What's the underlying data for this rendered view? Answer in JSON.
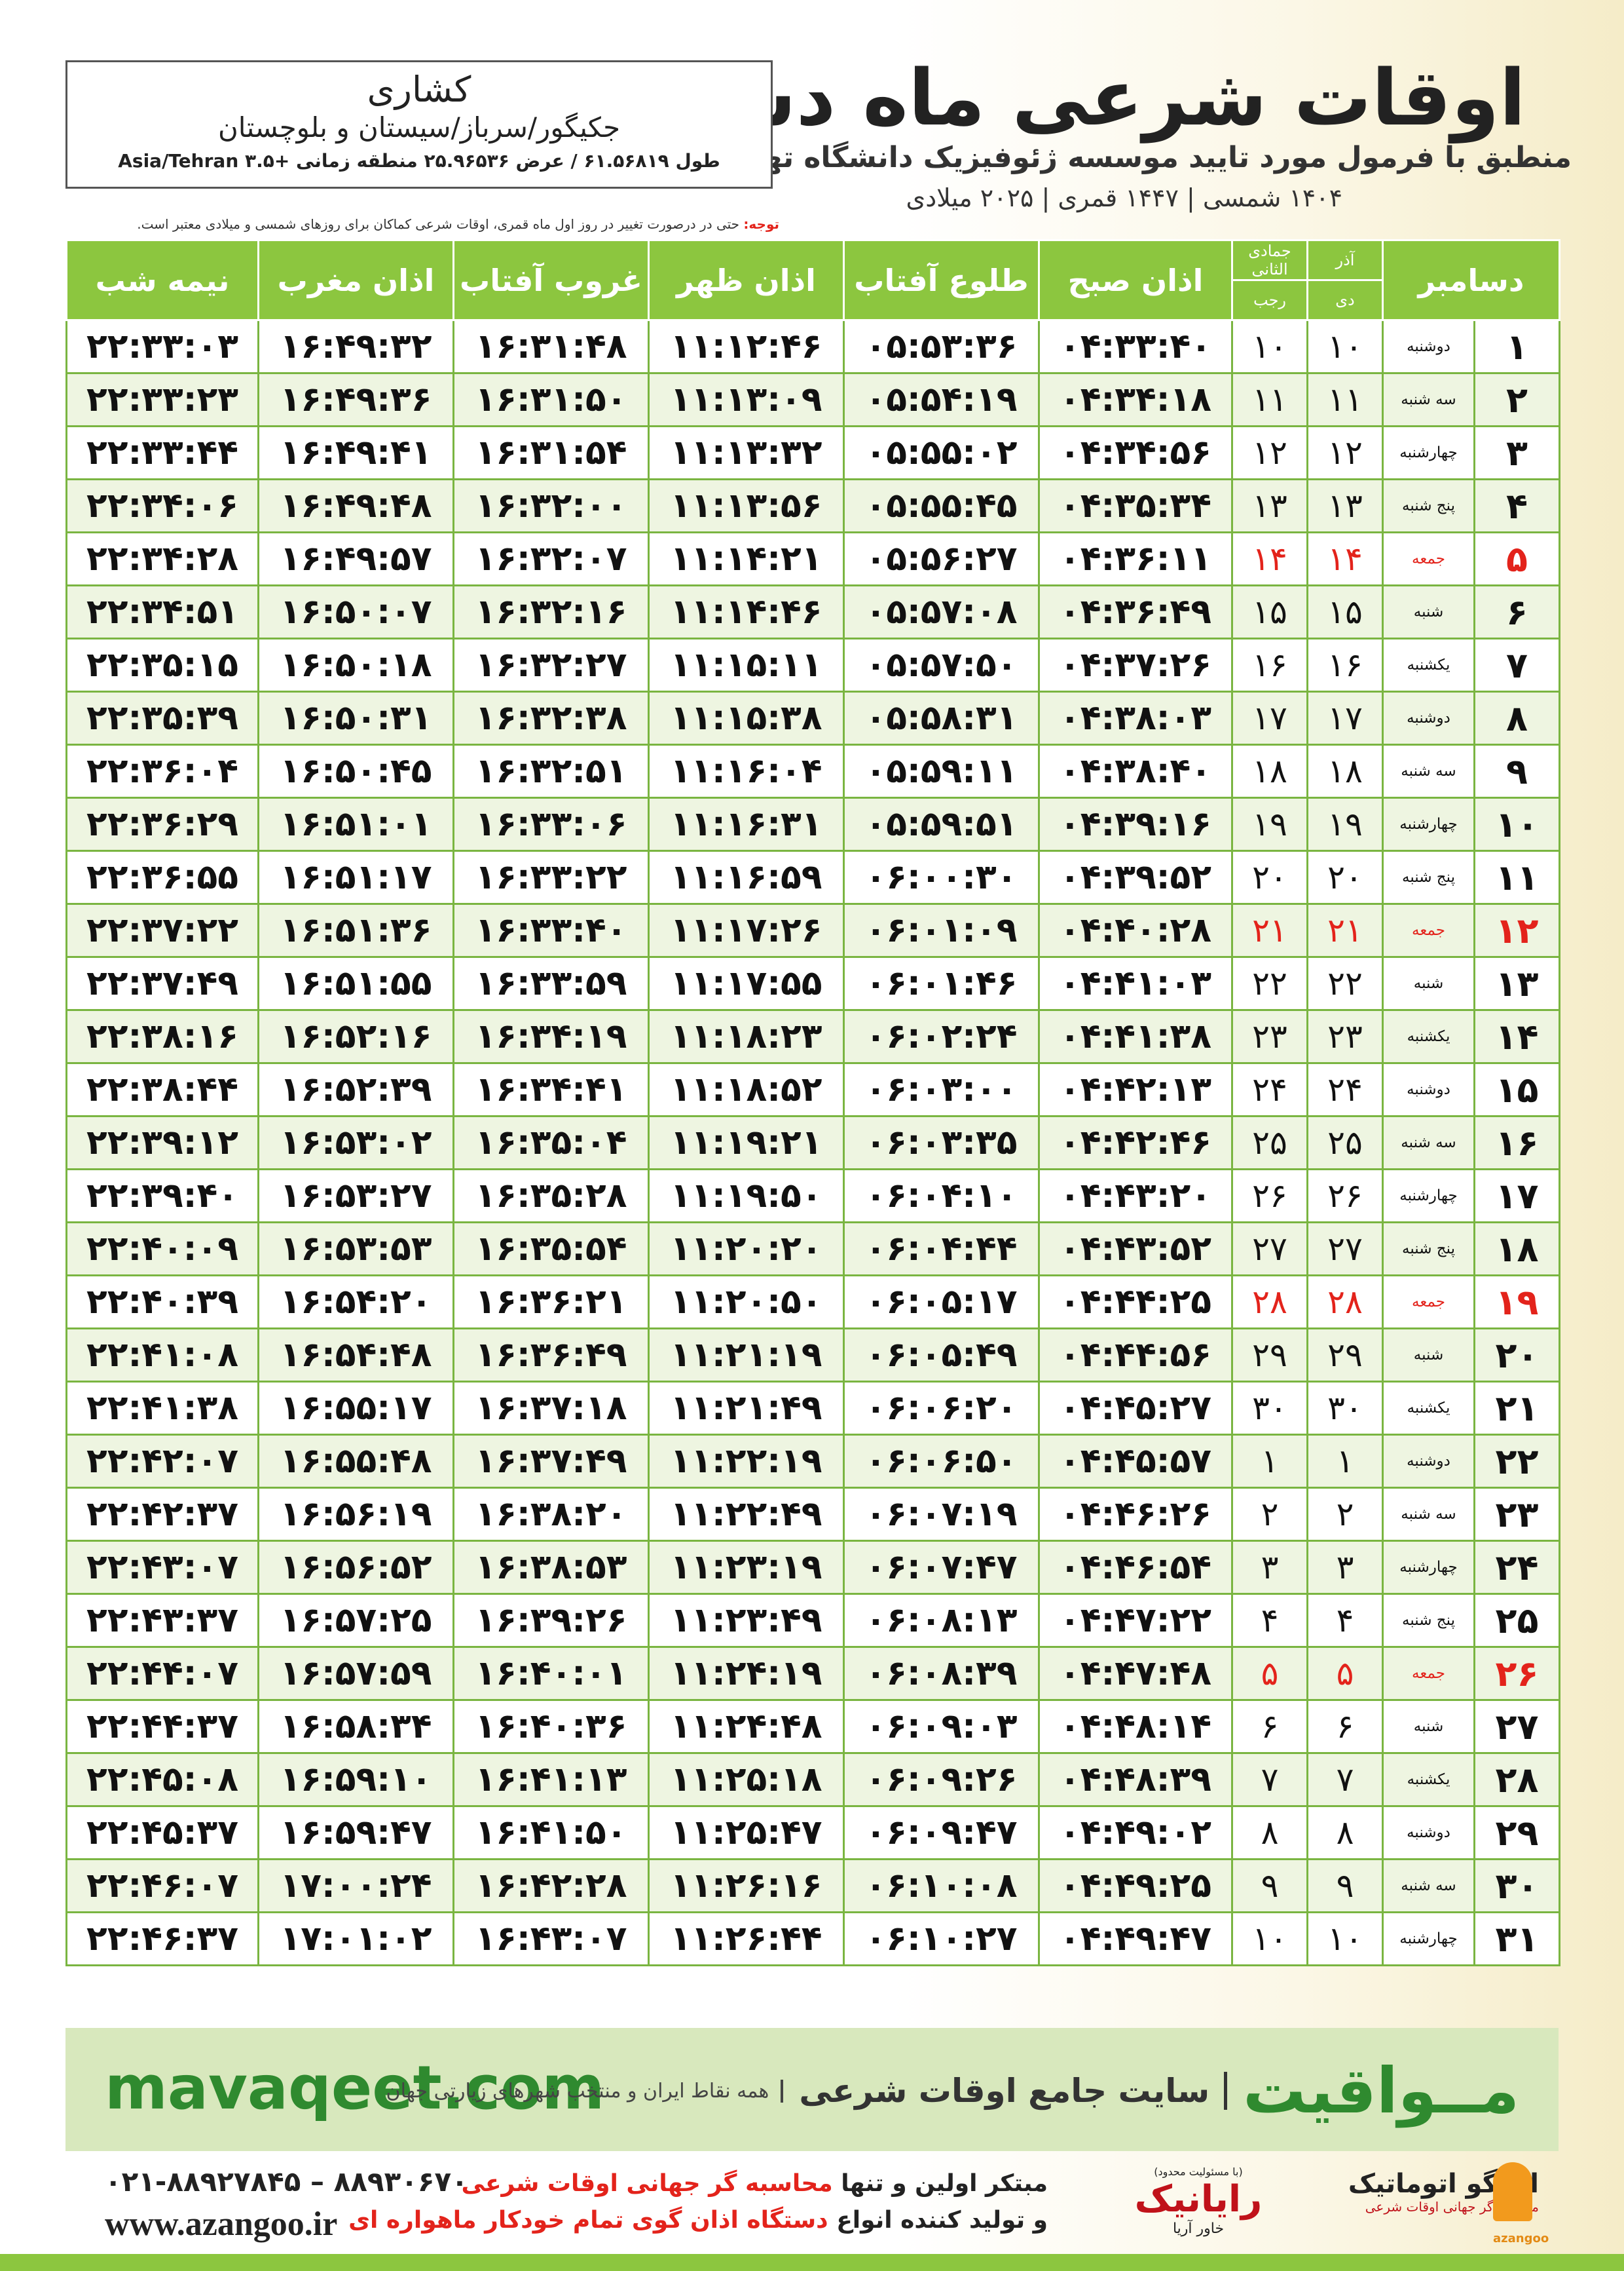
{
  "header": {
    "title": "اوقات شرعی ماه دسامبر",
    "subtitle": "منطبق با فرمول مورد تایید موسسه ژئوفیزیک دانشگاه تهران",
    "date_line": "۱۴۰۴ شمسی | ۱۴۴۷ قمری | ۲۰۲۵ میلادی"
  },
  "location": {
    "name": "کشاری",
    "region": "جکیگور/سرباز/سیستان و بلوچستان",
    "coords": "طول ۶۱.۵۶۸۱۹ / عرض ۲۵.۹۶۵۳۶ منطقه زمانی +۳.۵ Asia/Tehran"
  },
  "note": {
    "label": "توجه:",
    "text": "حتی در درصورت تغییر در روز اول ماه قمری، اوقات شرعی کماکان برای روزهای شمسی و میلادی معتبر است."
  },
  "table": {
    "headers": {
      "month": "دسامبر",
      "shamsi_top": "آذر",
      "shamsi_bottom": "دی",
      "qamari_top": "جمادی الثانی",
      "qamari_bottom": "رجب",
      "times": [
        "اذان صبح",
        "طلوع آفتاب",
        "اذان ظهر",
        "غروب آفتاب",
        "اذان مغرب",
        "نیمه شب"
      ]
    },
    "rows": [
      {
        "cells": [
          "۱",
          "دوشنبه",
          "۱۰",
          "۱۰",
          "۰۴:۳۳:۴۰",
          "۰۵:۵۳:۳۶",
          "۱۱:۱۲:۴۶",
          "۱۶:۳۱:۴۸",
          "۱۶:۴۹:۳۲",
          "۲۲:۳۳:۰۳"
        ]
      },
      {
        "cells": [
          "۲",
          "سه شنبه",
          "۱۱",
          "۱۱",
          "۰۴:۳۴:۱۸",
          "۰۵:۵۴:۱۹",
          "۱۱:۱۳:۰۹",
          "۱۶:۳۱:۵۰",
          "۱۶:۴۹:۳۶",
          "۲۲:۳۳:۲۳"
        ]
      },
      {
        "cells": [
          "۳",
          "چهارشنبه",
          "۱۲",
          "۱۲",
          "۰۴:۳۴:۵۶",
          "۰۵:۵۵:۰۲",
          "۱۱:۱۳:۳۲",
          "۱۶:۳۱:۵۴",
          "۱۶:۴۹:۴۱",
          "۲۲:۳۳:۴۴"
        ]
      },
      {
        "cells": [
          "۴",
          "پنج شنبه",
          "۱۳",
          "۱۳",
          "۰۴:۳۵:۳۴",
          "۰۵:۵۵:۴۵",
          "۱۱:۱۳:۵۶",
          "۱۶:۳۲:۰۰",
          "۱۶:۴۹:۴۸",
          "۲۲:۳۴:۰۶"
        ]
      },
      {
        "cells": [
          "۵",
          "جمعه",
          "۱۴",
          "۱۴",
          "۰۴:۳۶:۱۱",
          "۰۵:۵۶:۲۷",
          "۱۱:۱۴:۲۱",
          "۱۶:۳۲:۰۷",
          "۱۶:۴۹:۵۷",
          "۲۲:۳۴:۲۸"
        ],
        "color": "#e3231b"
      },
      {
        "cells": [
          "۶",
          "شنبه",
          "۱۵",
          "۱۵",
          "۰۴:۳۶:۴۹",
          "۰۵:۵۷:۰۸",
          "۱۱:۱۴:۴۶",
          "۱۶:۳۲:۱۶",
          "۱۶:۵۰:۰۷",
          "۲۲:۳۴:۵۱"
        ]
      },
      {
        "cells": [
          "۷",
          "یکشنبه",
          "۱۶",
          "۱۶",
          "۰۴:۳۷:۲۶",
          "۰۵:۵۷:۵۰",
          "۱۱:۱۵:۱۱",
          "۱۶:۳۲:۲۷",
          "۱۶:۵۰:۱۸",
          "۲۲:۳۵:۱۵"
        ]
      },
      {
        "cells": [
          "۸",
          "دوشنبه",
          "۱۷",
          "۱۷",
          "۰۴:۳۸:۰۳",
          "۰۵:۵۸:۳۱",
          "۱۱:۱۵:۳۸",
          "۱۶:۳۲:۳۸",
          "۱۶:۵۰:۳۱",
          "۲۲:۳۵:۳۹"
        ]
      },
      {
        "cells": [
          "۹",
          "سه شنبه",
          "۱۸",
          "۱۸",
          "۰۴:۳۸:۴۰",
          "۰۵:۵۹:۱۱",
          "۱۱:۱۶:۰۴",
          "۱۶:۳۲:۵۱",
          "۱۶:۵۰:۴۵",
          "۲۲:۳۶:۰۴"
        ]
      },
      {
        "cells": [
          "۱۰",
          "چهارشنبه",
          "۱۹",
          "۱۹",
          "۰۴:۳۹:۱۶",
          "۰۵:۵۹:۵۱",
          "۱۱:۱۶:۳۱",
          "۱۶:۳۳:۰۶",
          "۱۶:۵۱:۰۱",
          "۲۲:۳۶:۲۹"
        ]
      },
      {
        "cells": [
          "۱۱",
          "پنج شنبه",
          "۲۰",
          "۲۰",
          "۰۴:۳۹:۵۲",
          "۰۶:۰۰:۳۰",
          "۱۱:۱۶:۵۹",
          "۱۶:۳۳:۲۲",
          "۱۶:۵۱:۱۷",
          "۲۲:۳۶:۵۵"
        ]
      },
      {
        "cells": [
          "۱۲",
          "جمعه",
          "۲۱",
          "۲۱",
          "۰۴:۴۰:۲۸",
          "۰۶:۰۱:۰۹",
          "۱۱:۱۷:۲۶",
          "۱۶:۳۳:۴۰",
          "۱۶:۵۱:۳۶",
          "۲۲:۳۷:۲۲"
        ],
        "color": "#e3231b"
      },
      {
        "cells": [
          "۱۳",
          "شنبه",
          "۲۲",
          "۲۲",
          "۰۴:۴۱:۰۳",
          "۰۶:۰۱:۴۶",
          "۱۱:۱۷:۵۵",
          "۱۶:۳۳:۵۹",
          "۱۶:۵۱:۵۵",
          "۲۲:۳۷:۴۹"
        ]
      },
      {
        "cells": [
          "۱۴",
          "یکشنبه",
          "۲۳",
          "۲۳",
          "۰۴:۴۱:۳۸",
          "۰۶:۰۲:۲۴",
          "۱۱:۱۸:۲۳",
          "۱۶:۳۴:۱۹",
          "۱۶:۵۲:۱۶",
          "۲۲:۳۸:۱۶"
        ]
      },
      {
        "cells": [
          "۱۵",
          "دوشنبه",
          "۲۴",
          "۲۴",
          "۰۴:۴۲:۱۳",
          "۰۶:۰۳:۰۰",
          "۱۱:۱۸:۵۲",
          "۱۶:۳۴:۴۱",
          "۱۶:۵۲:۳۹",
          "۲۲:۳۸:۴۴"
        ]
      },
      {
        "cells": [
          "۱۶",
          "سه شنبه",
          "۲۵",
          "۲۵",
          "۰۴:۴۲:۴۶",
          "۰۶:۰۳:۳۵",
          "۱۱:۱۹:۲۱",
          "۱۶:۳۵:۰۴",
          "۱۶:۵۳:۰۲",
          "۲۲:۳۹:۱۲"
        ]
      },
      {
        "cells": [
          "۱۷",
          "چهارشنبه",
          "۲۶",
          "۲۶",
          "۰۴:۴۳:۲۰",
          "۰۶:۰۴:۱۰",
          "۱۱:۱۹:۵۰",
          "۱۶:۳۵:۲۸",
          "۱۶:۵۳:۲۷",
          "۲۲:۳۹:۴۰"
        ]
      },
      {
        "cells": [
          "۱۸",
          "پنج شنبه",
          "۲۷",
          "۲۷",
          "۰۴:۴۳:۵۲",
          "۰۶:۰۴:۴۴",
          "۱۱:۲۰:۲۰",
          "۱۶:۳۵:۵۴",
          "۱۶:۵۳:۵۳",
          "۲۲:۴۰:۰۹"
        ]
      },
      {
        "cells": [
          "۱۹",
          "جمعه",
          "۲۸",
          "۲۸",
          "۰۴:۴۴:۲۵",
          "۰۶:۰۵:۱۷",
          "۱۱:۲۰:۵۰",
          "۱۶:۳۶:۲۱",
          "۱۶:۵۴:۲۰",
          "۲۲:۴۰:۳۹"
        ],
        "color": "#e3231b"
      },
      {
        "cells": [
          "۲۰",
          "شنبه",
          "۲۹",
          "۲۹",
          "۰۴:۴۴:۵۶",
          "۰۶:۰۵:۴۹",
          "۱۱:۲۱:۱۹",
          "۱۶:۳۶:۴۹",
          "۱۶:۵۴:۴۸",
          "۲۲:۴۱:۰۸"
        ]
      },
      {
        "cells": [
          "۲۱",
          "یکشنبه",
          "۳۰",
          "۳۰",
          "۰۴:۴۵:۲۷",
          "۰۶:۰۶:۲۰",
          "۱۱:۲۱:۴۹",
          "۱۶:۳۷:۱۸",
          "۱۶:۵۵:۱۷",
          "۲۲:۴۱:۳۸"
        ]
      },
      {
        "cells": [
          "۲۲",
          "دوشنبه",
          "۱",
          "۱",
          "۰۴:۴۵:۵۷",
          "۰۶:۰۶:۵۰",
          "۱۱:۲۲:۱۹",
          "۱۶:۳۷:۴۹",
          "۱۶:۵۵:۴۸",
          "۲۲:۴۲:۰۷"
        ]
      },
      {
        "cells": [
          "۲۳",
          "سه شنبه",
          "۲",
          "۲",
          "۰۴:۴۶:۲۶",
          "۰۶:۰۷:۱۹",
          "۱۱:۲۲:۴۹",
          "۱۶:۳۸:۲۰",
          "۱۶:۵۶:۱۹",
          "۲۲:۴۲:۳۷"
        ]
      },
      {
        "cells": [
          "۲۴",
          "چهارشنبه",
          "۳",
          "۳",
          "۰۴:۴۶:۵۴",
          "۰۶:۰۷:۴۷",
          "۱۱:۲۳:۱۹",
          "۱۶:۳۸:۵۳",
          "۱۶:۵۶:۵۲",
          "۲۲:۴۳:۰۷"
        ]
      },
      {
        "cells": [
          "۲۵",
          "پنج شنبه",
          "۴",
          "۴",
          "۰۴:۴۷:۲۲",
          "۰۶:۰۸:۱۳",
          "۱۱:۲۳:۴۹",
          "۱۶:۳۹:۲۶",
          "۱۶:۵۷:۲۵",
          "۲۲:۴۳:۳۷"
        ]
      },
      {
        "cells": [
          "۲۶",
          "جمعه",
          "۵",
          "۵",
          "۰۴:۴۷:۴۸",
          "۰۶:۰۸:۳۹",
          "۱۱:۲۴:۱۹",
          "۱۶:۴۰:۰۱",
          "۱۶:۵۷:۵۹",
          "۲۲:۴۴:۰۷"
        ],
        "color": "#e3231b"
      },
      {
        "cells": [
          "۲۷",
          "شنبه",
          "۶",
          "۶",
          "۰۴:۴۸:۱۴",
          "۰۶:۰۹:۰۳",
          "۱۱:۲۴:۴۸",
          "۱۶:۴۰:۳۶",
          "۱۶:۵۸:۳۴",
          "۲۲:۴۴:۳۷"
        ]
      },
      {
        "cells": [
          "۲۸",
          "یکشنبه",
          "۷",
          "۷",
          "۰۴:۴۸:۳۹",
          "۰۶:۰۹:۲۶",
          "۱۱:۲۵:۱۸",
          "۱۶:۴۱:۱۳",
          "۱۶:۵۹:۱۰",
          "۲۲:۴۵:۰۸"
        ]
      },
      {
        "cells": [
          "۲۹",
          "دوشنبه",
          "۸",
          "۸",
          "۰۴:۴۹:۰۲",
          "۰۶:۰۹:۴۷",
          "۱۱:۲۵:۴۷",
          "۱۶:۴۱:۵۰",
          "۱۶:۵۹:۴۷",
          "۲۲:۴۵:۳۷"
        ]
      },
      {
        "cells": [
          "۳۰",
          "سه شنبه",
          "۹",
          "۹",
          "۰۴:۴۹:۲۵",
          "۰۶:۱۰:۰۸",
          "۱۱:۲۶:۱۶",
          "۱۶:۴۲:۲۸",
          "۱۷:۰۰:۲۴",
          "۲۲:۴۶:۰۷"
        ]
      },
      {
        "cells": [
          "۳۱",
          "چهارشنبه",
          "۱۰",
          "۱۰",
          "۰۴:۴۹:۴۷",
          "۰۶:۱۰:۲۷",
          "۱۱:۲۶:۴۴",
          "۱۶:۴۳:۰۷",
          "۱۷:۰۱:۰۲",
          "۲۲:۴۶:۳۷"
        ]
      }
    ]
  },
  "banner": {
    "brand": "مــواقیت",
    "slogan": "سایت جامع اوقات شرعی",
    "coverage": "همه نقاط ایران و منتخب شهرهای زیارتی جهان",
    "url": "mavaqeet.com"
  },
  "footer": {
    "phone": "۰۲۱-۸۸۹۲۷۸۴۵ – ۸۸۹۳۰۶۷۰",
    "website": "www.azangoo.ir",
    "line1_prefix": "مبتکر اولین و تنها",
    "line1_highlight": "محاسبه گر جهانی اوقات شرعی",
    "line2_prefix": "و تولید کننده انواع",
    "line2_highlight": "دستگاه اذان گوی تمام خودکار ماهواره ای",
    "logo1_note": "(با مسئولیت محدود)",
    "logo1_name": "رایانیک",
    "logo1_sub": "خاور آریا",
    "logo2_name": "اذانگو اتوماتیک",
    "logo2_sub": "محاسبه گر جهانی اوقات شرعی",
    "logo2_latin": "azangoo"
  }
}
